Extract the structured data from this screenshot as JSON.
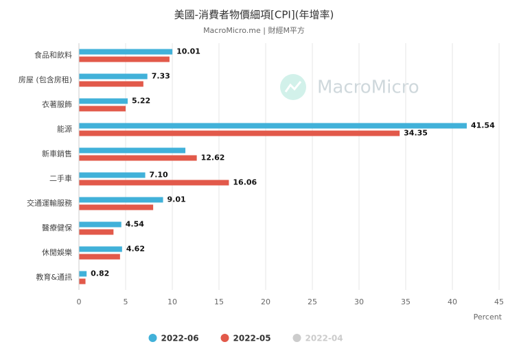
{
  "chart_data": {
    "type": "bar",
    "orientation": "horizontal",
    "title": "美國-消費者物價細項[CPI](年增率)",
    "subtitle": "MacroMicro.me | 財經M平方",
    "watermark": "MacroMicro",
    "x_label": "Percent",
    "categories": [
      "食品和飲料",
      "房屋 (包含房租)",
      "衣著服飾",
      "能源",
      "新車銷售",
      "二手車",
      "交通運輸服務",
      "醫療健保",
      "休閒娛樂",
      "教育&通訊"
    ],
    "series": [
      {
        "name": "2022-06",
        "color": "#41b1d9",
        "values": [
          10.01,
          7.33,
          5.22,
          41.54,
          11.4,
          7.1,
          9.01,
          4.54,
          4.62,
          0.82
        ],
        "value_labels": [
          "10.01",
          "7.33",
          "5.22",
          "41.54",
          null,
          "7.10",
          "9.01",
          "4.54",
          "4.62",
          "0.82"
        ]
      },
      {
        "name": "2022-05",
        "color": "#e2594a",
        "values": [
          9.7,
          6.9,
          5.0,
          34.35,
          12.62,
          16.06,
          7.95,
          3.7,
          4.4,
          0.7
        ],
        "value_labels": [
          null,
          null,
          null,
          "34.35",
          "12.62",
          "16.06",
          null,
          null,
          null,
          null
        ]
      },
      {
        "name": "2022-04",
        "color": "#cccccc",
        "hidden": true,
        "values": [
          null,
          null,
          null,
          null,
          null,
          null,
          null,
          null,
          null,
          null
        ]
      }
    ],
    "xlim": [
      0,
      45
    ],
    "xticks": [
      0,
      5,
      10,
      15,
      20,
      25,
      30,
      35,
      40,
      45
    ],
    "grid": true
  }
}
